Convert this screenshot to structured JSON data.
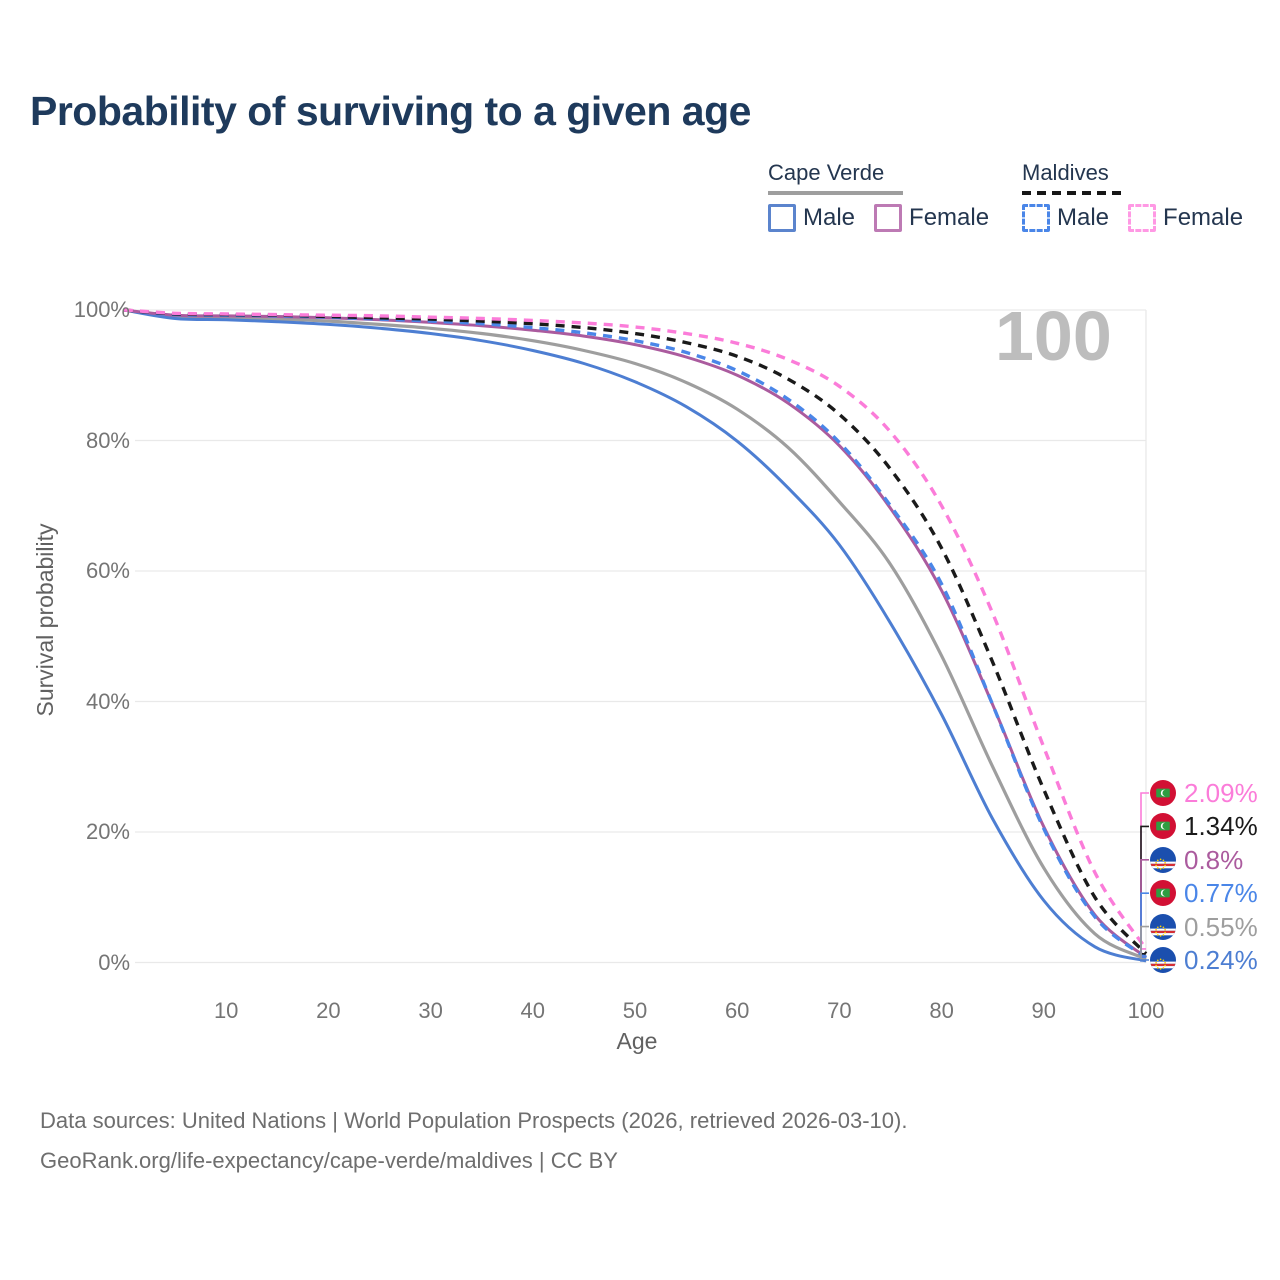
{
  "title": "Probability of surviving to a given age",
  "watermark_age": "100",
  "legend": {
    "groups": [
      {
        "id": "cape-verde",
        "name": "Cape Verde",
        "line_style": "solid",
        "underline_color": "#9e9e9e",
        "items": [
          {
            "id": "cape-verde-male",
            "label": "Male",
            "color": "#5b84cd",
            "dashed": false
          },
          {
            "id": "cape-verde-female",
            "label": "Female",
            "color": "#bd7ab4",
            "dashed": false
          }
        ]
      },
      {
        "id": "maldives",
        "name": "Maldives",
        "line_style": "dashed",
        "underline_color": "#161616",
        "items": [
          {
            "id": "maldives-male",
            "label": "Male",
            "color": "#4a86e8",
            "dashed": true
          },
          {
            "id": "maldives-female",
            "label": "Female",
            "color": "#ff99e4",
            "dashed": true
          }
        ]
      }
    ]
  },
  "axes": {
    "x": {
      "label": "Age",
      "min": 0,
      "max": 100,
      "ticks": [
        10,
        20,
        30,
        40,
        50,
        60,
        70,
        80,
        90,
        100
      ]
    },
    "y": {
      "label": "Survival probability",
      "min": 0,
      "max": 100,
      "ticks": [
        {
          "v": 0,
          "t": "0%"
        },
        {
          "v": 20,
          "t": "20%"
        },
        {
          "v": 40,
          "t": "40%"
        },
        {
          "v": 60,
          "t": "60%"
        },
        {
          "v": 80,
          "t": "80%"
        },
        {
          "v": 100,
          "t": "100%"
        }
      ]
    }
  },
  "chart_data": {
    "type": "line",
    "title": "Probability of surviving to a given age",
    "xlabel": "Age",
    "ylabel": "Survival probability",
    "xlim": [
      0,
      100
    ],
    "ylim": [
      0,
      100
    ],
    "grid": "horizontal, plus vertical line at age 100",
    "legend_position": "top-right",
    "x_ages": [
      0,
      5,
      10,
      15,
      20,
      25,
      30,
      35,
      40,
      45,
      50,
      55,
      60,
      65,
      70,
      75,
      80,
      85,
      90,
      95,
      100
    ],
    "series": [
      {
        "id": "cape-verde-combined",
        "country": "Cape Verde",
        "group": "combined",
        "color": "#9e9e9e",
        "dashed": false,
        "end_value_pct": 0.55,
        "values": [
          100,
          99.0,
          98.8,
          98.6,
          98.3,
          97.8,
          97.2,
          96.4,
          95.3,
          93.8,
          91.8,
          88.9,
          84.8,
          78.9,
          70.6,
          61.0,
          47.0,
          30.0,
          14.5,
          4.4,
          0.55
        ]
      },
      {
        "id": "cape-verde-male",
        "country": "Cape Verde",
        "group": "Male",
        "color": "#4d7ed2",
        "dashed": false,
        "end_value_pct": 0.24,
        "values": [
          100,
          98.7,
          98.5,
          98.2,
          97.8,
          97.2,
          96.4,
          95.3,
          93.8,
          91.8,
          89.0,
          85.2,
          79.9,
          72.7,
          64.0,
          52.0,
          38.0,
          22.0,
          9.5,
          2.4,
          0.24
        ]
      },
      {
        "id": "cape-verde-female",
        "country": "Cape Verde",
        "group": "Female",
        "color": "#ab5b9e",
        "dashed": false,
        "end_value_pct": 0.8,
        "values": [
          100,
          99.2,
          99.1,
          99.0,
          98.8,
          98.5,
          98.1,
          97.6,
          96.9,
          96.0,
          94.7,
          92.8,
          90.0,
          85.7,
          79.2,
          69.6,
          57.0,
          39.5,
          20.8,
          7.3,
          0.8
        ]
      },
      {
        "id": "maldives-male",
        "country": "Maldives",
        "group": "Male",
        "color": "#4a86e8",
        "dashed": true,
        "end_value_pct": 0.77,
        "values": [
          100,
          99.3,
          99.2,
          99.1,
          98.9,
          98.6,
          98.3,
          97.9,
          97.3,
          96.5,
          95.3,
          93.5,
          90.7,
          86.3,
          79.7,
          70.0,
          58.0,
          39.5,
          20.5,
          7.0,
          0.77
        ]
      },
      {
        "id": "maldives-combined",
        "country": "Maldives",
        "group": "combined",
        "color": "#1a1a1a",
        "dashed": true,
        "end_value_pct": 1.34,
        "values": [
          100,
          99.4,
          99.3,
          99.2,
          99.0,
          98.8,
          98.6,
          98.3,
          97.9,
          97.3,
          96.4,
          95.0,
          92.9,
          89.4,
          84.0,
          75.6,
          63.5,
          46.0,
          26.5,
          10.0,
          1.34
        ]
      },
      {
        "id": "maldives-female",
        "country": "Maldives",
        "group": "Female",
        "color": "#fb7cd9",
        "dashed": true,
        "end_value_pct": 2.09,
        "values": [
          100,
          99.5,
          99.4,
          99.3,
          99.2,
          99.1,
          98.9,
          98.7,
          98.4,
          98.0,
          97.4,
          96.4,
          94.9,
          92.4,
          88.3,
          81.3,
          70.0,
          53.5,
          33.0,
          13.8,
          2.09
        ]
      }
    ]
  },
  "end_labels": [
    {
      "text": "2.09%",
      "series": "maldives-female",
      "flag": "maldives",
      "color": "#fb7cd9"
    },
    {
      "text": "1.34%",
      "series": "maldives-combined",
      "flag": "maldives",
      "color": "#1a1a1a"
    },
    {
      "text": "0.8%",
      "series": "cape-verde-female",
      "flag": "cape-verde",
      "color": "#ab5b9e"
    },
    {
      "text": "0.77%",
      "series": "maldives-male",
      "flag": "maldives",
      "color": "#4a86e8"
    },
    {
      "text": "0.55%",
      "series": "cape-verde-combined",
      "flag": "cape-verde",
      "color": "#9e9e9e"
    },
    {
      "text": "0.24%",
      "series": "cape-verde-male",
      "flag": "cape-verde",
      "color": "#4d7ed2"
    }
  ],
  "footer": {
    "line1": "Data sources: United Nations | World Population Prospects (2026, retrieved 2026-03-10).",
    "line2": "GeoRank.org/life-expectancy/cape-verde/maldives | CC BY"
  },
  "colors": {
    "title_text": "#1e3a5c",
    "axis_text": "#757575",
    "grid": "#e9e9e9",
    "watermark": "#bdbdbd",
    "flag_maldives_field": "#d21034",
    "flag_maldives_green": "#2f9e41",
    "flag_cape_verde_field": "#1b4fae",
    "flag_cape_verde_red": "#d42e34",
    "flag_cape_verde_star": "#ffd100"
  }
}
